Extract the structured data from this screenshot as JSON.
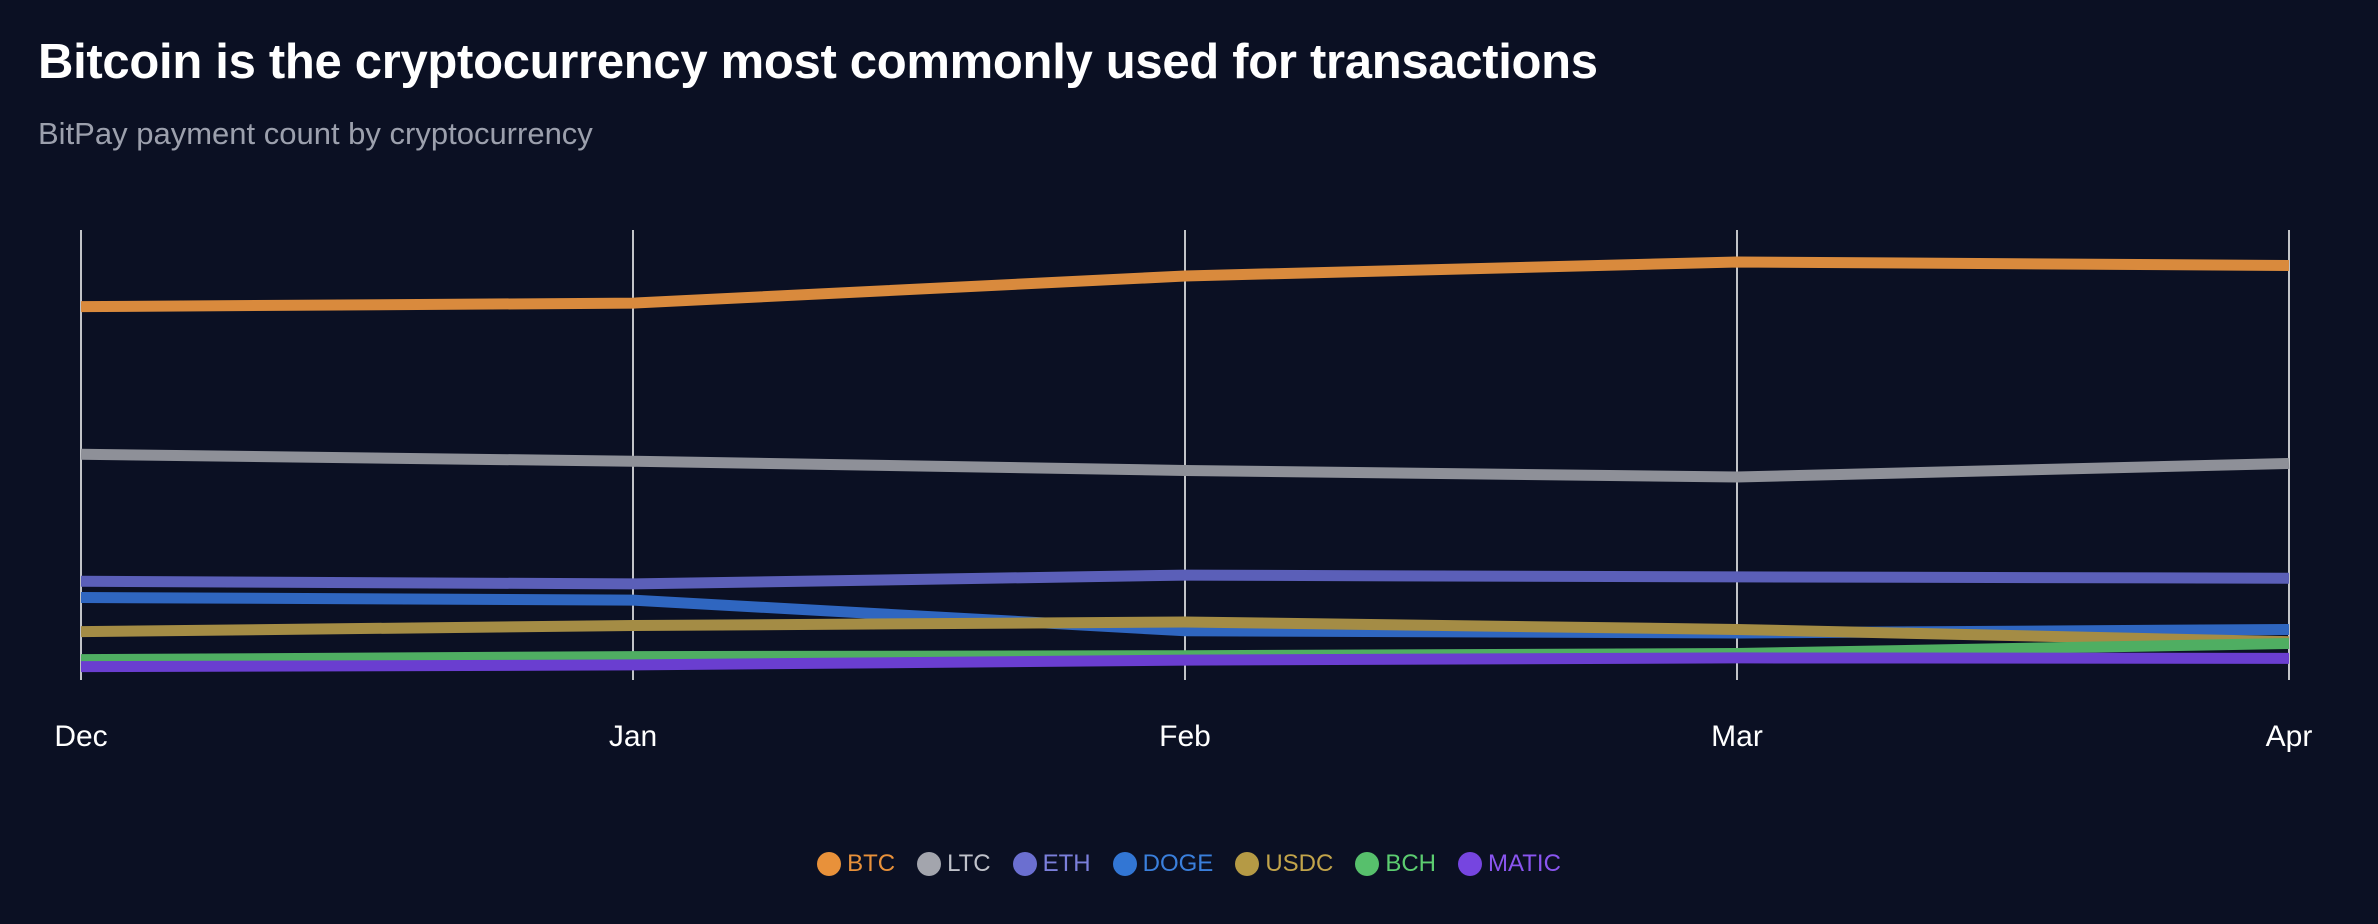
{
  "title": "Bitcoin is the cryptocurrency most commonly used for transactions",
  "subtitle": "BitPay payment count by cryptocurrency",
  "chart_data": {
    "type": "line",
    "title": "Bitcoin is the cryptocurrency most commonly used for transactions",
    "subtitle": "BitPay payment count by cryptocurrency",
    "xlabel": "",
    "ylabel": "",
    "categories": [
      "Dec",
      "Jan",
      "Feb",
      "Mar",
      "Apr"
    ],
    "ylim": [
      0,
      100
    ],
    "grid": "vertical",
    "legend": "bottom-center",
    "series": [
      {
        "name": "BTC",
        "color": "#d98a3d",
        "values": [
          82.5,
          83.3,
          89.5,
          92.7,
          91.9
        ]
      },
      {
        "name": "LTC",
        "color": "#8e9098",
        "values": [
          48.8,
          47.2,
          45.1,
          43.6,
          46.7
        ]
      },
      {
        "name": "ETH",
        "color": "#5b5fb8",
        "values": [
          19.8,
          19.2,
          21.2,
          20.8,
          20.5
        ]
      },
      {
        "name": "DOGE",
        "color": "#2f66c0",
        "values": [
          16.1,
          15.5,
          8.5,
          8.0,
          8.8
        ]
      },
      {
        "name": "USDC",
        "color": "#a48c45",
        "values": [
          8.3,
          9.7,
          10.5,
          8.8,
          6.0
        ]
      },
      {
        "name": "BCH",
        "color": "#4fae62",
        "values": [
          1.9,
          2.6,
          2.8,
          3.3,
          5.6
        ]
      },
      {
        "name": "MATIC",
        "color": "#6a3ed0",
        "values": [
          0.3,
          0.7,
          1.8,
          2.3,
          2.2
        ]
      }
    ]
  },
  "legend_items": [
    {
      "label": "BTC",
      "swatch": "#e8913a",
      "text_color": "#e8913a"
    },
    {
      "label": "LTC",
      "swatch": "#a3a5ad",
      "text_color": "#c0c2ca"
    },
    {
      "label": "ETH",
      "swatch": "#6b6fd0",
      "text_color": "#7b7fdb"
    },
    {
      "label": "DOGE",
      "swatch": "#3276d4",
      "text_color": "#3a7fdc"
    },
    {
      "label": "USDC",
      "swatch": "#b59a45",
      "text_color": "#c2a44a"
    },
    {
      "label": "BCH",
      "swatch": "#57c06c",
      "text_color": "#5ccd70"
    },
    {
      "label": "MATIC",
      "swatch": "#7645e0",
      "text_color": "#8a55f0"
    }
  ]
}
